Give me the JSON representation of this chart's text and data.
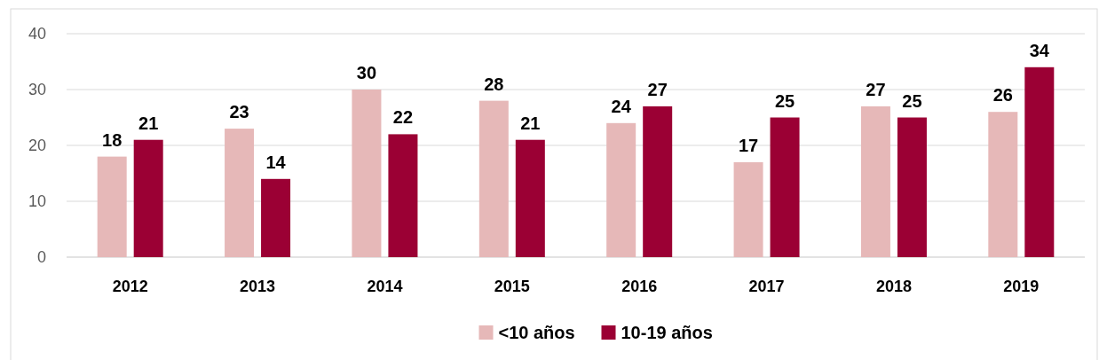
{
  "chart_data": {
    "type": "bar",
    "categories": [
      "2012",
      "2013",
      "2014",
      "2015",
      "2016",
      "2017",
      "2018",
      "2019"
    ],
    "series": [
      {
        "name": "<10 años",
        "color": "#e6b8b8",
        "values": [
          18,
          23,
          30,
          28,
          24,
          17,
          27,
          26
        ]
      },
      {
        "name": "10-19 años",
        "color": "#9b0034",
        "values": [
          21,
          14,
          22,
          21,
          27,
          25,
          25,
          34
        ]
      }
    ],
    "ylim": [
      0,
      40
    ],
    "yticks": [
      0,
      10,
      20,
      30,
      40
    ],
    "grid": "y",
    "legend": "bottom",
    "data_labels": true
  }
}
